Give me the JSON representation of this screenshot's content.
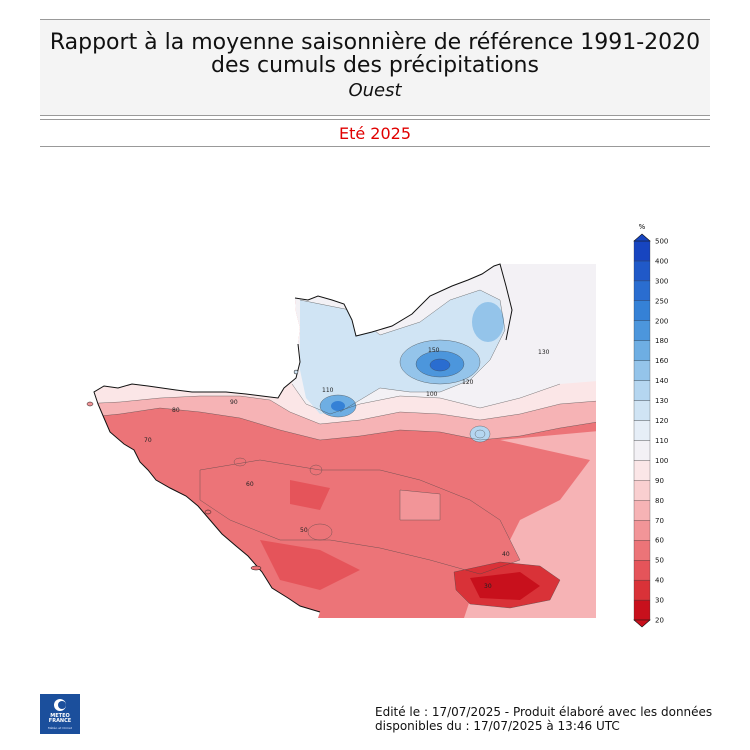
{
  "header": {
    "title_line1": "Rapport à la moyenne saisonnière de référence 1991-2020",
    "title_line2": "des cumuls des précipitations",
    "region": "Ouest",
    "season": "Eté 2025"
  },
  "colorbar": {
    "unit": "%",
    "levels": [
      20,
      30,
      40,
      50,
      60,
      70,
      80,
      90,
      100,
      110,
      120,
      130,
      140,
      160,
      180,
      200,
      250,
      300,
      400,
      500
    ],
    "colors": [
      "#c8101c",
      "#d93238",
      "#e5545a",
      "#ec7478",
      "#f29598",
      "#f6b3b5",
      "#f9cfd0",
      "#fbe6e7",
      "#f3f1f5",
      "#e6eef7",
      "#d0e4f4",
      "#b5d6f0",
      "#94c4ea",
      "#6eaee3",
      "#4c96dc",
      "#3581d6",
      "#2a6dd0",
      "#2059c8",
      "#1745c0"
    ]
  },
  "map": {
    "base_color": "#ec7478",
    "contour_labels": [
      "50",
      "60",
      "70",
      "80",
      "90",
      "100",
      "110",
      "120",
      "130",
      "150",
      "40",
      "30"
    ]
  },
  "logo": {
    "text": "METEO FRANCE",
    "sub": "Météo et Climat"
  },
  "footer": {
    "line1": "Edité le : 17/07/2025 - Produit élaboré avec les données",
    "line2": "disponibles du : 17/07/2025 à 13:46 UTC"
  }
}
